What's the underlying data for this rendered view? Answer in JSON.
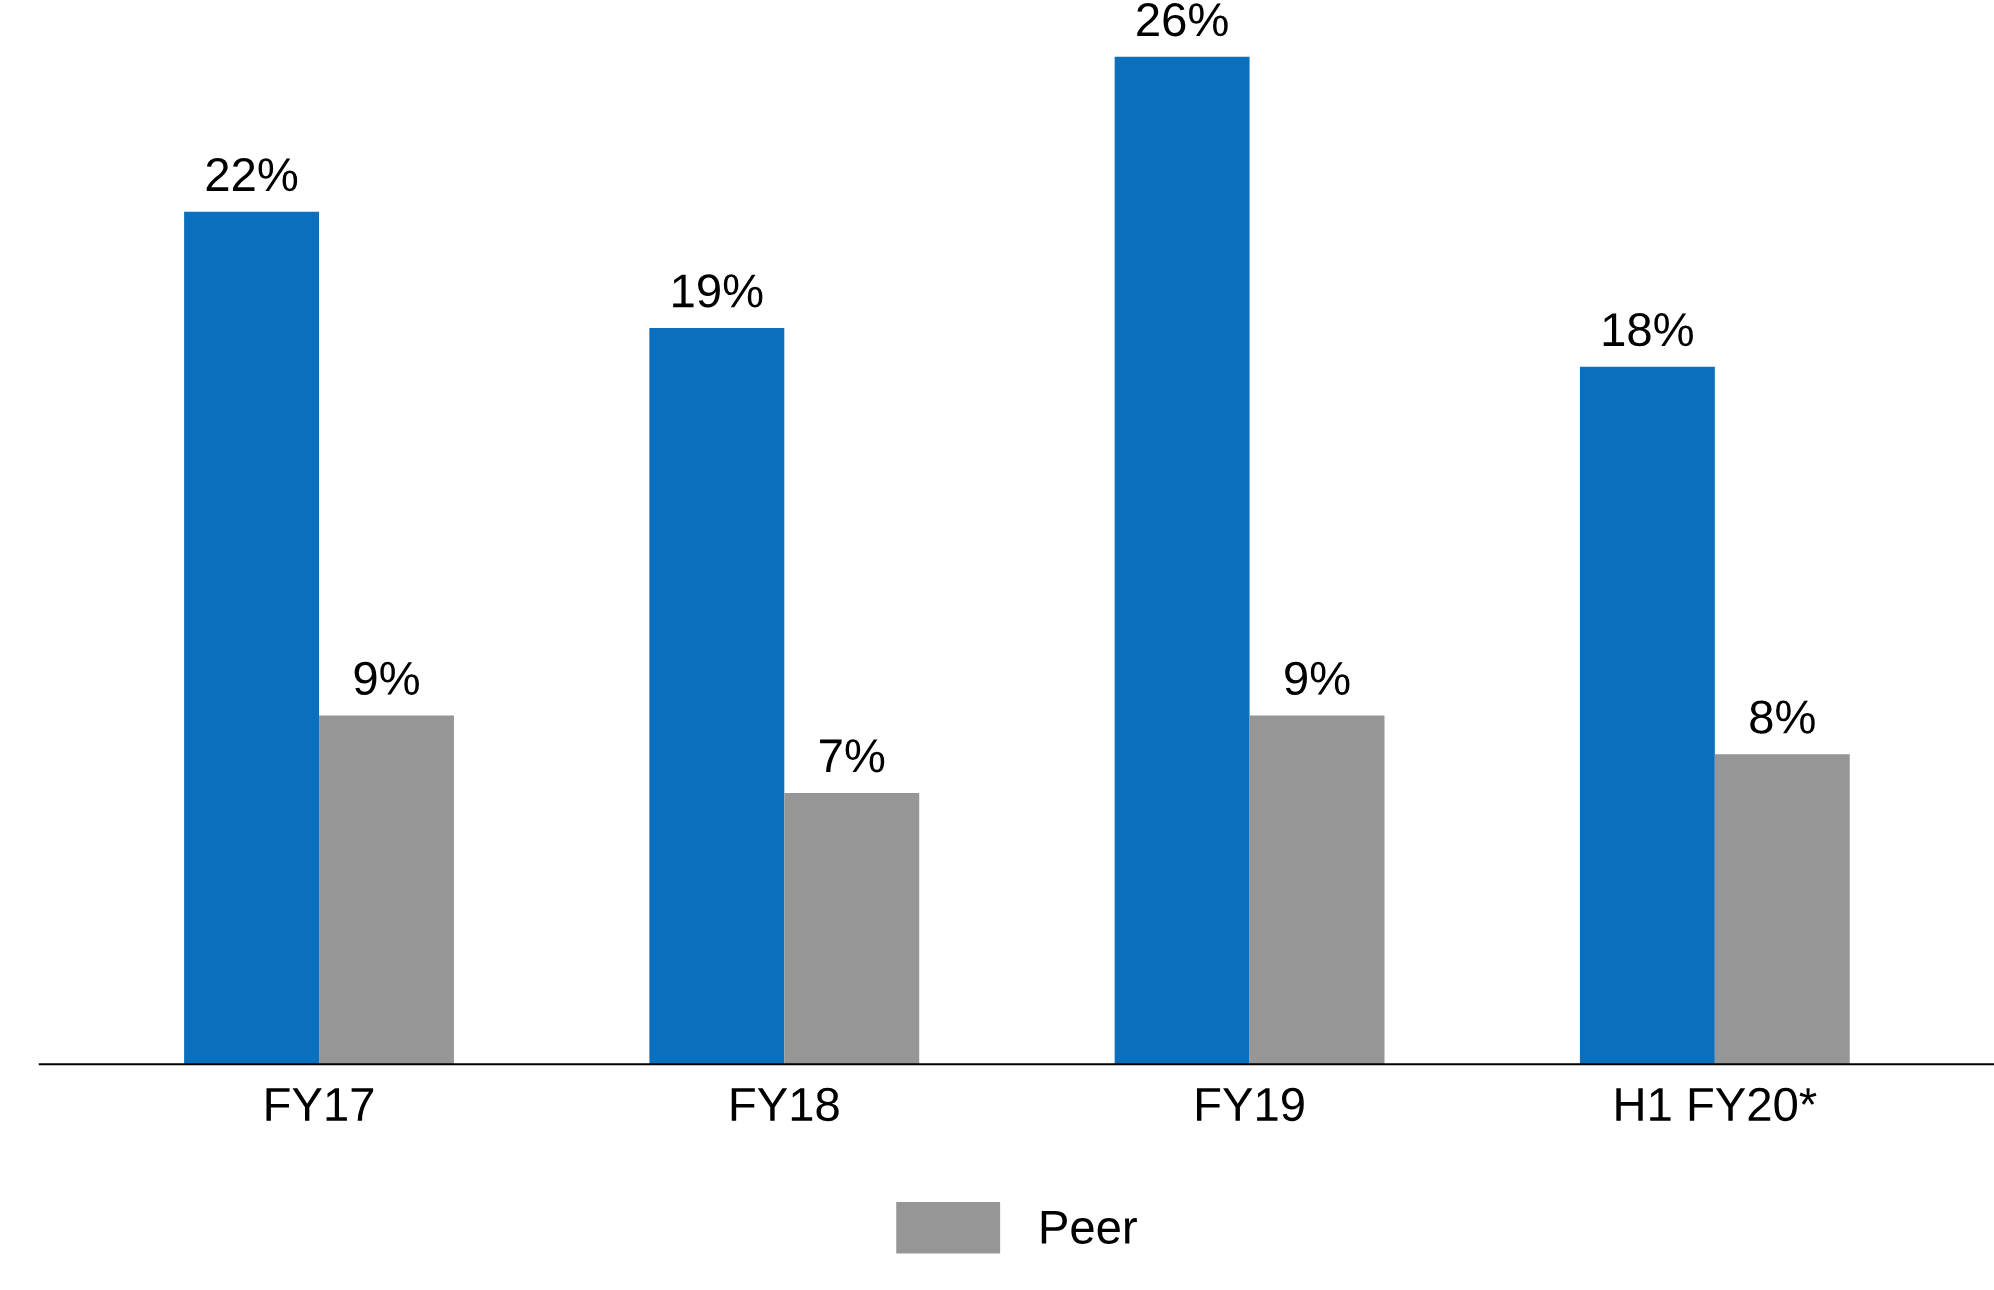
{
  "chart_data": {
    "type": "bar",
    "categories": [
      "FY17",
      "FY18",
      "FY19",
      "H1 FY20*"
    ],
    "series": [
      {
        "color": "#0a70be",
        "values": [
          22,
          19,
          26,
          18
        ],
        "value_labels": [
          "22%",
          "19%",
          "26%",
          "18%"
        ]
      },
      {
        "name": "Peer",
        "color": "#969696",
        "values": [
          9,
          7,
          9,
          8
        ],
        "value_labels": [
          "9%",
          "7%",
          "9%",
          "8%"
        ]
      }
    ],
    "legend": "bottom",
    "grid": false
  }
}
